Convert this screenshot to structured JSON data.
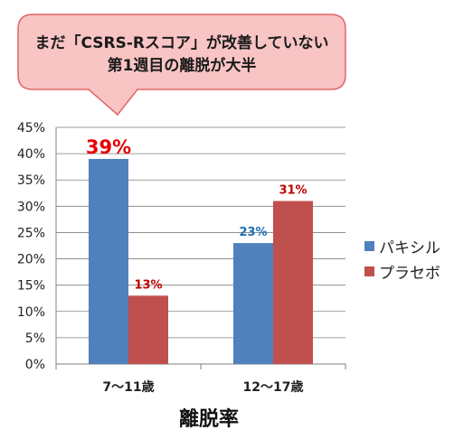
{
  "callout": {
    "line1": "まだ「CSRS-Rスコア」が改善していない",
    "line2": "第1週目の離脱が大半"
  },
  "colors": {
    "series_a": "#4F81BD",
    "series_b": "#C0504D",
    "label_a": "#1F6FB5",
    "label_b": "#C00000",
    "highlight": "#E60000",
    "callout_fill": "#F9C4C4",
    "callout_stroke": "#E06666"
  },
  "chart_data": {
    "type": "bar",
    "categories": [
      "7～11歳",
      "12～17歳"
    ],
    "series": [
      {
        "name": "パキシル",
        "values": [
          39,
          23
        ]
      },
      {
        "name": "プラセボ",
        "values": [
          13,
          31
        ]
      }
    ],
    "data_labels": [
      [
        "39%",
        "23%"
      ],
      [
        "13%",
        "31%"
      ]
    ],
    "yticks": [
      "0%",
      "5%",
      "10%",
      "15%",
      "20%",
      "25%",
      "30%",
      "35%",
      "40%",
      "45%"
    ],
    "ylim": [
      0,
      45
    ],
    "xlabel": "離脱率",
    "ylabel": "",
    "grid": true,
    "legend_position": "right"
  }
}
